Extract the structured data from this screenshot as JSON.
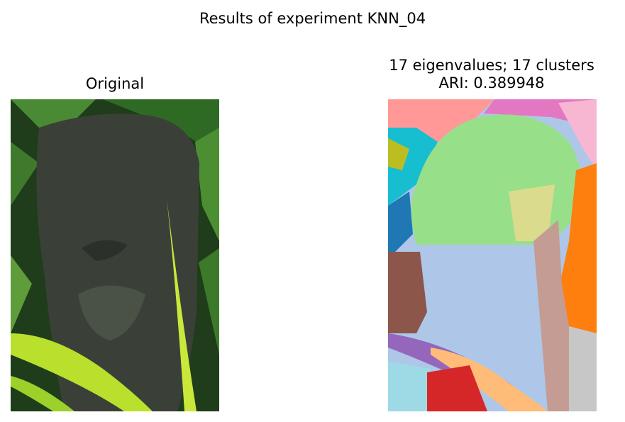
{
  "figure": {
    "suptitle": "Results of experiment KNN_04",
    "left_panel": {
      "title": "Original",
      "image": "photo of carved wooden tiki head among green tropical leaves"
    },
    "right_panel": {
      "title_line1": "17 eigenvalues; 17 clusters",
      "title_line2": "ARI: 0.389948",
      "image": "segmentation map with 17 colored cluster regions"
    },
    "colors": {
      "leaf_dark": "#1f3d1a",
      "leaf_mid": "#3f7a2c",
      "leaf_bright": "#b9e02c",
      "statue": "#3a4038",
      "cluster_green": "#98df8a",
      "cluster_lightblue": "#aec7e8",
      "cluster_orange": "#ff7f0e",
      "cluster_brown": "#8c564b",
      "cluster_red": "#d62728",
      "cluster_pink": "#e377c2",
      "cluster_purple": "#9467bd",
      "cluster_gray": "#c7c7c7",
      "cluster_cyan": "#17becf",
      "cluster_olive": "#bcbd22",
      "cluster_blue": "#1f77b4",
      "cluster_peach": "#ffbb78",
      "cluster_salmon": "#ff9896",
      "cluster_rose": "#c49c94",
      "cluster_lightpink": "#f7b6d2",
      "cluster_khaki": "#dbdb8d",
      "cluster_paleblue": "#9edae5"
    }
  }
}
